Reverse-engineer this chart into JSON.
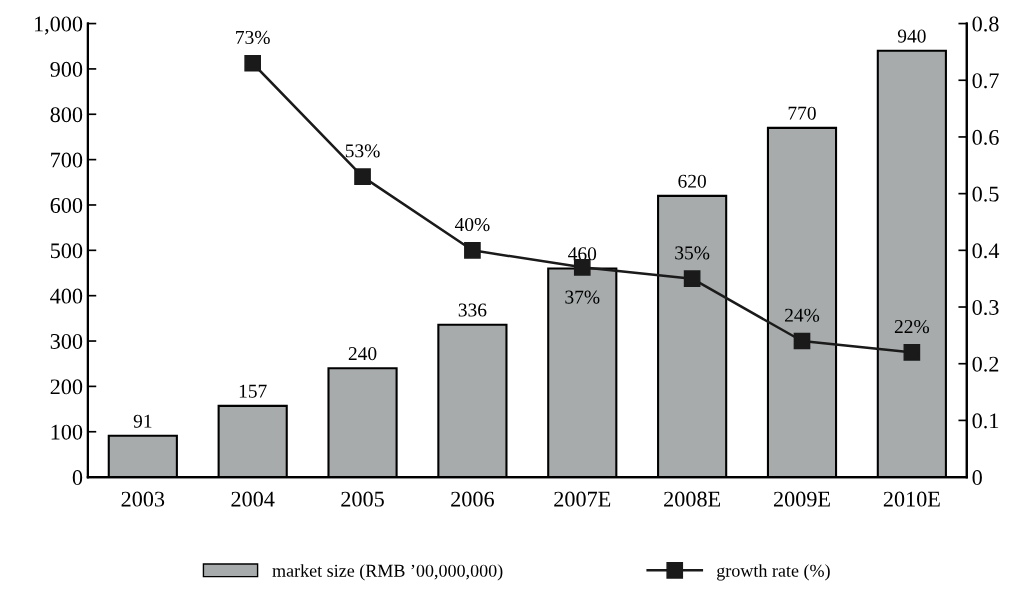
{
  "chart_data": {
    "type": "bar",
    "categories": [
      "2003",
      "2004",
      "2005",
      "2006",
      "2007E",
      "2008E",
      "2009E",
      "2010E"
    ],
    "series": [
      {
        "name": "market size (RMB ’00,000,000)",
        "color": "#a7abab",
        "values": [
          91,
          157,
          240,
          336,
          460,
          620,
          770,
          940
        ],
        "data_labels": true
      },
      {
        "name": "growth rate (%)",
        "type": "line",
        "axis": "y2",
        "color": "#1a1a1a",
        "marker": "square",
        "values": [
          null,
          0.73,
          0.53,
          0.4,
          0.37,
          0.35,
          0.24,
          0.22
        ],
        "value_labels": [
          null,
          "73%",
          "53%",
          "40%",
          "37%",
          "35%",
          "24%",
          "22%"
        ]
      }
    ],
    "ylim": [
      0,
      1000
    ],
    "yticks": [
      0,
      100,
      200,
      300,
      400,
      500,
      600,
      700,
      800,
      900,
      {
        "value": 1000,
        "label": "1,000"
      }
    ],
    "y2lim": [
      0,
      0.8
    ],
    "y2ticks": [
      0,
      0.1,
      0.2,
      0.3,
      0.4,
      0.5,
      0.6,
      0.7,
      0.8
    ],
    "grid": false,
    "legend": "bottom"
  }
}
